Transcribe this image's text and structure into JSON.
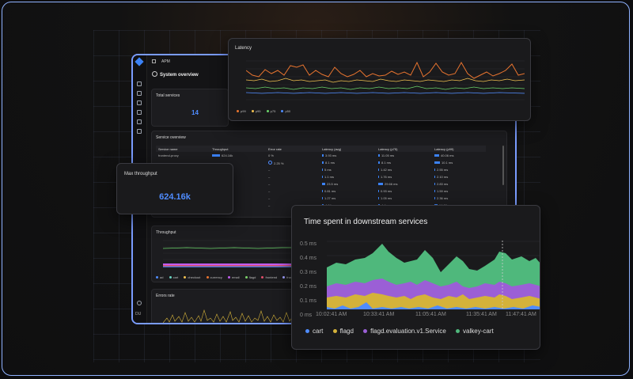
{
  "app": {
    "breadcrumb": "APM",
    "page_title": "System overview",
    "user_initials": "DU"
  },
  "total_services": {
    "title": "Total services",
    "value": "14"
  },
  "service_overview": {
    "title": "Service overview",
    "columns": [
      "Service name",
      "Throughput",
      "Error rate",
      "Latency (avg)",
      "Latency (p75)",
      "Latency (p99)"
    ],
    "rows": [
      {
        "name": "frontend-proxy",
        "throughput": "624.16k",
        "error": "0 %",
        "avg": "3.93 ms",
        "p75": "11.05 ms",
        "p99": "40.06 ms"
      },
      {
        "name": "",
        "throughput": "",
        "error": "2.25 %",
        "avg": "8.1 ms",
        "p75": "8.1 ms",
        "p99": "10.1 ms"
      },
      {
        "name": "",
        "throughput": "",
        "error": "–",
        "avg": "5 ms",
        "p75": "1.42 ms",
        "p99": "2.55 ms"
      },
      {
        "name": "",
        "throughput": "",
        "error": "–",
        "avg": "1.1 ms",
        "p75": "1.76 ms",
        "p99": "2.10 ms"
      },
      {
        "name": "",
        "throughput": "",
        "error": "–",
        "avg": "23.5 ms",
        "p75": "29.66 ms",
        "p99": "2.83 ms"
      },
      {
        "name": "",
        "throughput": "",
        "error": "–",
        "avg": "0.81 ms",
        "p75": "0.93 ms",
        "p99": "1.59 ms"
      },
      {
        "name": "",
        "throughput": "",
        "error": "–",
        "avg": "1.27 ms",
        "p75": "1.05 ms",
        "p99": "2.36 ms"
      },
      {
        "name": "",
        "throughput": "",
        "error": "–",
        "avg": "4.04 ms",
        "p75": "4.4 ms",
        "p99": "14.06 ms"
      }
    ]
  },
  "throughput_card": {
    "title": "Throughput",
    "legend": [
      "ad",
      "cart",
      "checkout",
      "currency",
      "email",
      "flagd",
      "frontend",
      "frontend-proxy"
    ],
    "colors": [
      "#4f8cff",
      "#6ad3c0",
      "#f0c050",
      "#e8742f",
      "#c05cf0",
      "#7bd36a",
      "#e04e6a",
      "#a0a0ff"
    ]
  },
  "errors_card": {
    "title": "Errors rate"
  },
  "max_throughput": {
    "title": "Max throughput",
    "value": "624.16k"
  },
  "latency_panel": {
    "title": "Latency",
    "legend": [
      "p99",
      "p95",
      "p75",
      "p50"
    ],
    "colors": [
      "#e8742f",
      "#f0c050",
      "#6ad36a",
      "#4f8cff"
    ]
  },
  "downstream": {
    "title": "Time spent in downstream services",
    "y_ticks": [
      "0.5 ms",
      "0.4 ms",
      "0.3 ms",
      "0.2 ms",
      "0.1 ms",
      "0 ms"
    ],
    "x_ticks": [
      "10:02:41 AM",
      "10:33:41 AM",
      "11:05:41 AM",
      "11:35:41 AM",
      "11:47:41 AM"
    ],
    "legend": [
      "cart",
      "flagd",
      "flagd.evaluation.v1.Service",
      "valkey-cart"
    ],
    "colors": [
      "#4f8cff",
      "#d4b23a",
      "#9b5fd6",
      "#4fb87c"
    ]
  }
}
